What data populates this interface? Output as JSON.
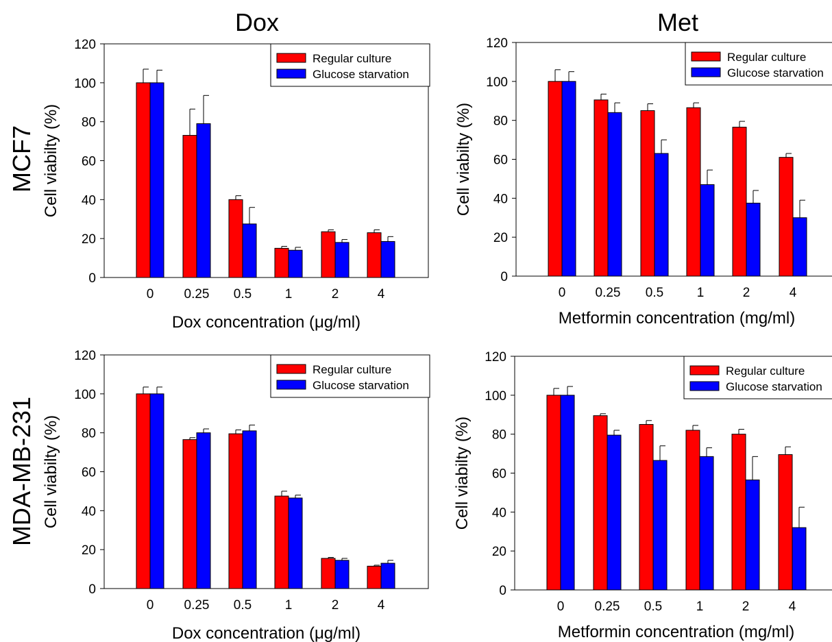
{
  "column_titles": [
    "Dox",
    "Met"
  ],
  "row_labels": [
    "MCF7",
    "MDA-MB-231"
  ],
  "colors": {
    "regular": "#ff0000",
    "starvation": "#0000ff",
    "axis": "#000000"
  },
  "chart_data": [
    {
      "type": "bar",
      "row": "MCF7",
      "column": "Dox",
      "categories": [
        "0",
        "0.25",
        "0.5",
        "1",
        "2",
        "4"
      ],
      "xlabel": "Dox concentration (μg/ml)",
      "ylabel": "Cell viabilty (%)",
      "ylim": [
        0,
        120
      ],
      "yticks": [
        0,
        20,
        40,
        60,
        80,
        100,
        120
      ],
      "legend_position": "top-right",
      "series": [
        {
          "name": "Regular culture",
          "color": "#ff0000",
          "values": [
            100,
            73,
            40,
            15,
            23.5,
            23
          ],
          "errors": [
            7,
            13.5,
            2,
            1,
            1,
            1.5
          ]
        },
        {
          "name": "Glucose starvation",
          "color": "#0000ff",
          "values": [
            100,
            79,
            27.5,
            14,
            18,
            18.5
          ],
          "errors": [
            6.5,
            14.5,
            8.5,
            1.5,
            1.5,
            2.5
          ]
        }
      ]
    },
    {
      "type": "bar",
      "row": "MCF7",
      "column": "Met",
      "categories": [
        "0",
        "0.25",
        "0.5",
        "1",
        "2",
        "4"
      ],
      "xlabel": "Metformin concentration (mg/ml)",
      "ylabel": "Cell viabilty (%)",
      "ylim": [
        0,
        120
      ],
      "yticks": [
        0,
        20,
        40,
        60,
        80,
        100,
        120
      ],
      "legend_position": "top-right",
      "series": [
        {
          "name": "Regular culture",
          "color": "#ff0000",
          "values": [
            100,
            90.5,
            85,
            86.5,
            76.5,
            61
          ],
          "errors": [
            6,
            3,
            3.5,
            2.5,
            3,
            2
          ]
        },
        {
          "name": "Glucose starvation",
          "color": "#0000ff",
          "values": [
            100,
            84,
            63,
            47,
            37.5,
            30
          ],
          "errors": [
            5,
            5,
            7,
            7.5,
            6.5,
            9
          ]
        }
      ]
    },
    {
      "type": "bar",
      "row": "MDA-MB-231",
      "column": "Dox",
      "categories": [
        "0",
        "0.25",
        "0.5",
        "1",
        "2",
        "4"
      ],
      "xlabel": "Dox concentration (μg/ml)",
      "ylabel": "Cell viabilty (%)",
      "ylim": [
        0,
        120
      ],
      "yticks": [
        0,
        20,
        40,
        60,
        80,
        100,
        120
      ],
      "legend_position": "top-right",
      "series": [
        {
          "name": "Regular culture",
          "color": "#ff0000",
          "values": [
            100,
            76.5,
            79.5,
            47.5,
            15.5,
            11.5
          ],
          "errors": [
            3.5,
            1,
            2,
            2.5,
            0.5,
            0.5
          ]
        },
        {
          "name": "Glucose starvation",
          "color": "#0000ff",
          "values": [
            100,
            80,
            81,
            46.5,
            14.5,
            13
          ],
          "errors": [
            3.5,
            2,
            3,
            1.5,
            1,
            1.5
          ]
        }
      ]
    },
    {
      "type": "bar",
      "row": "MDA-MB-231",
      "column": "Met",
      "categories": [
        "0",
        "0.25",
        "0.5",
        "1",
        "2",
        "4"
      ],
      "xlabel": "Metformin concentration (mg/ml)",
      "ylabel": "Cell viabilty (%)",
      "ylim": [
        0,
        120
      ],
      "yticks": [
        0,
        20,
        40,
        60,
        80,
        100,
        120
      ],
      "legend_position": "top-right",
      "series": [
        {
          "name": "Regular culture",
          "color": "#ff0000",
          "values": [
            100,
            89.5,
            85,
            82,
            80,
            69.5
          ],
          "errors": [
            3.5,
            1,
            2,
            2.5,
            2.5,
            4
          ]
        },
        {
          "name": "Glucose starvation",
          "color": "#0000ff",
          "values": [
            100,
            79.5,
            66.5,
            68.5,
            56.5,
            32
          ],
          "errors": [
            4.5,
            2.5,
            7.5,
            4.5,
            12,
            10.5
          ]
        }
      ]
    }
  ]
}
